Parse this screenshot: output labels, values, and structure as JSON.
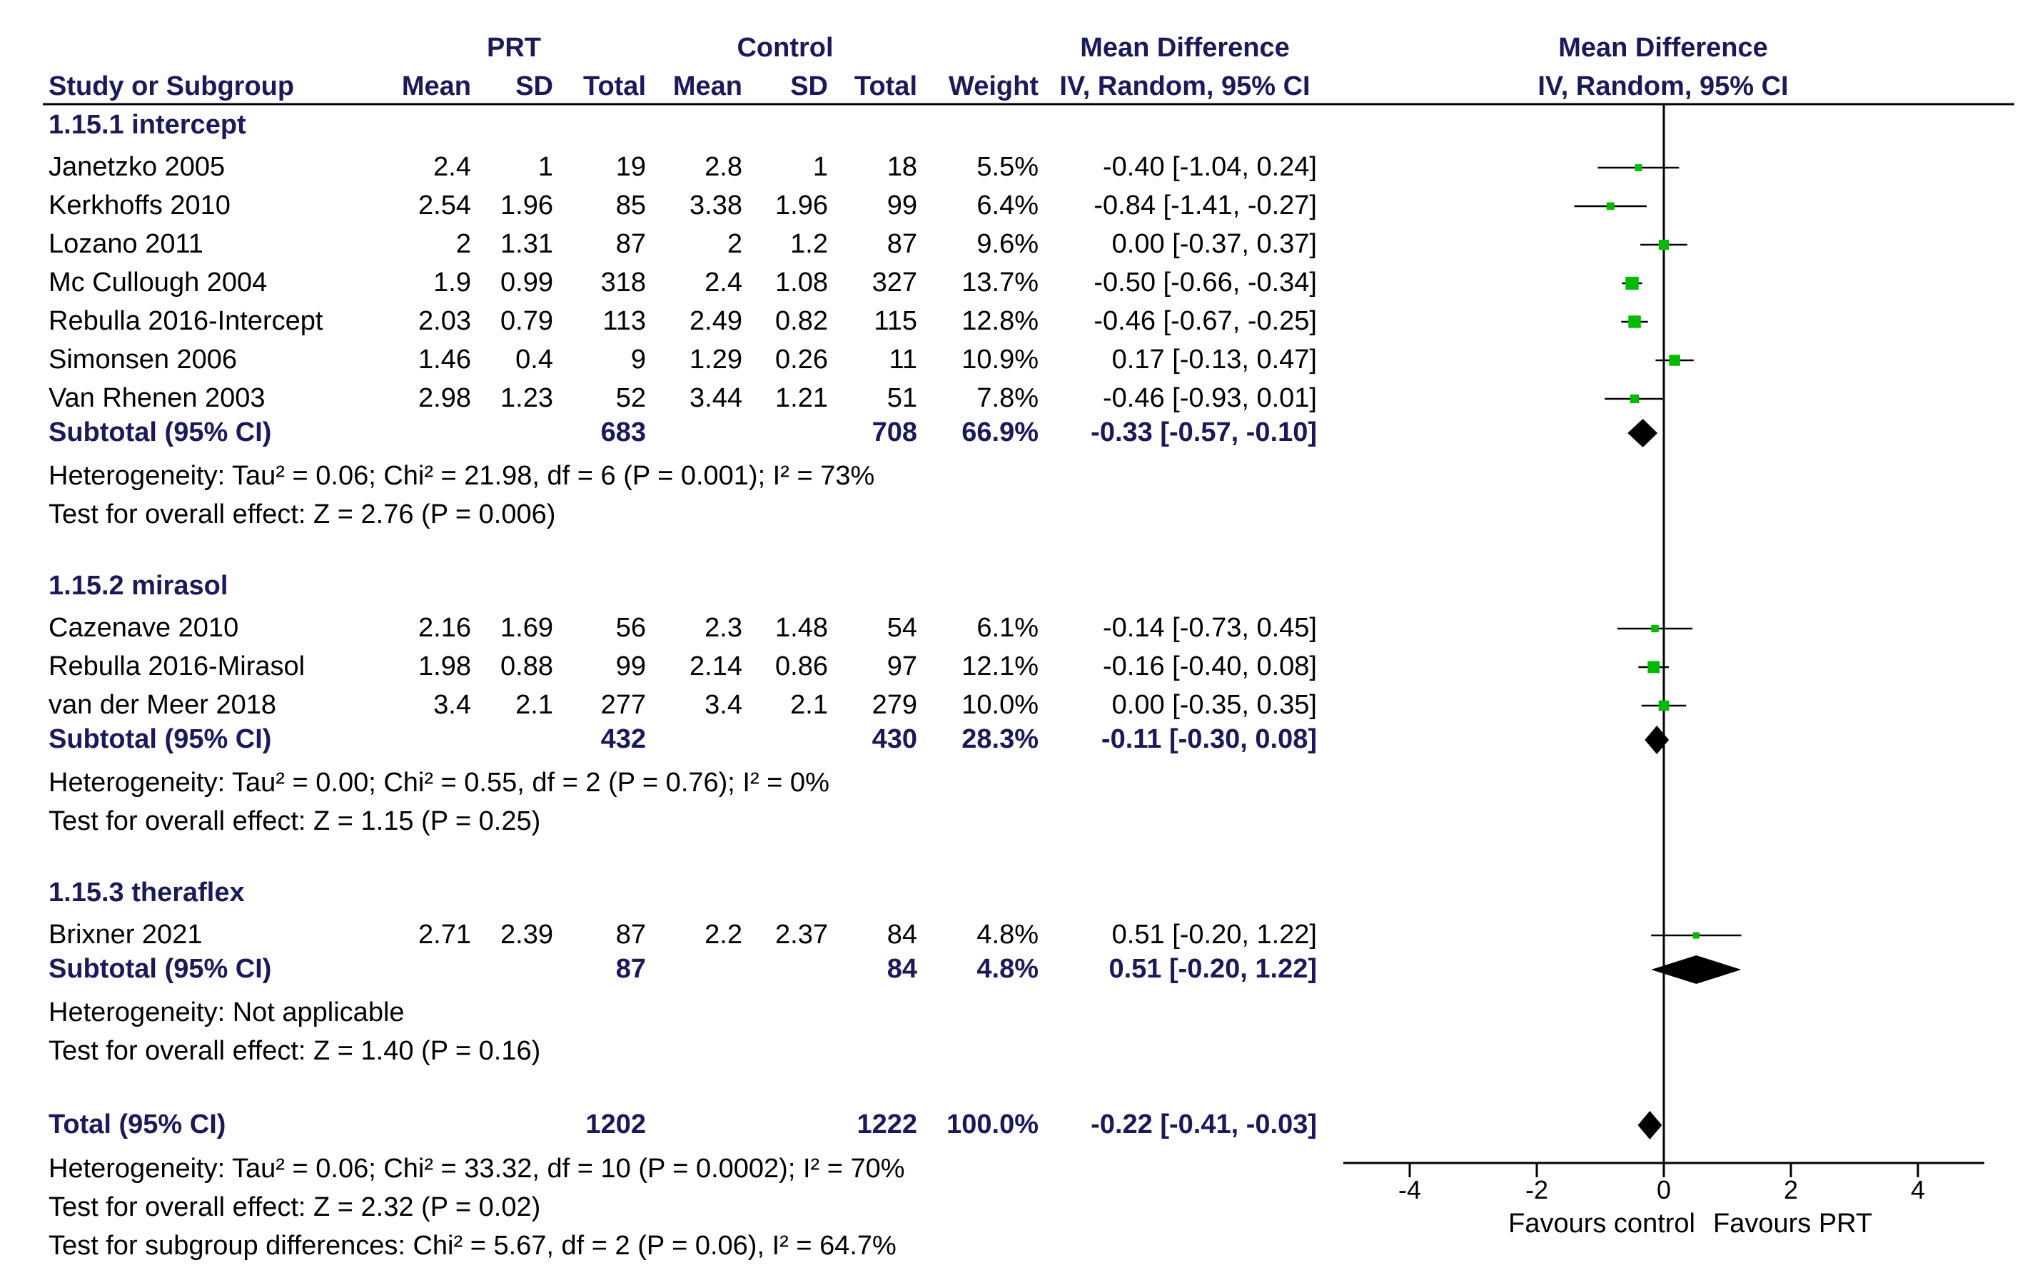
{
  "header": {
    "prt": "PRT",
    "control": "Control",
    "md_title": "Mean Difference",
    "md_sub": "IV, Random, 95% CI",
    "plot_title": "Mean Difference",
    "plot_sub": "IV, Random, 95% CI",
    "study": "Study or Subgroup",
    "mean1": "Mean",
    "sd1": "SD",
    "total1": "Total",
    "mean2": "Mean",
    "sd2": "SD",
    "total2": "Total",
    "weight": "Weight"
  },
  "groups": [
    {
      "title": "1.15.1 intercept",
      "studies": [
        {
          "name": "Janetzko 2005",
          "m1": "2.4",
          "sd1": "1",
          "n1": "19",
          "m2": "2.8",
          "sd2": "1",
          "n2": "18",
          "w": "5.5%",
          "ci": "-0.40 [-1.04, 0.24]"
        },
        {
          "name": "Kerkhoffs 2010",
          "m1": "2.54",
          "sd1": "1.96",
          "n1": "85",
          "m2": "3.38",
          "sd2": "1.96",
          "n2": "99",
          "w": "6.4%",
          "ci": "-0.84 [-1.41, -0.27]"
        },
        {
          "name": "Lozano 2011",
          "m1": "2",
          "sd1": "1.31",
          "n1": "87",
          "m2": "2",
          "sd2": "1.2",
          "n2": "87",
          "w": "9.6%",
          "ci": "0.00 [-0.37, 0.37]"
        },
        {
          "name": "Mc Cullough 2004",
          "m1": "1.9",
          "sd1": "0.99",
          "n1": "318",
          "m2": "2.4",
          "sd2": "1.08",
          "n2": "327",
          "w": "13.7%",
          "ci": "-0.50 [-0.66, -0.34]"
        },
        {
          "name": "Rebulla 2016-Intercept",
          "m1": "2.03",
          "sd1": "0.79",
          "n1": "113",
          "m2": "2.49",
          "sd2": "0.82",
          "n2": "115",
          "w": "12.8%",
          "ci": "-0.46 [-0.67, -0.25]"
        },
        {
          "name": "Simonsen 2006",
          "m1": "1.46",
          "sd1": "0.4",
          "n1": "9",
          "m2": "1.29",
          "sd2": "0.26",
          "n2": "11",
          "w": "10.9%",
          "ci": "0.17 [-0.13, 0.47]"
        },
        {
          "name": "Van Rhenen 2003",
          "m1": "2.98",
          "sd1": "1.23",
          "n1": "52",
          "m2": "3.44",
          "sd2": "1.21",
          "n2": "51",
          "w": "7.8%",
          "ci": "-0.46 [-0.93, 0.01]"
        }
      ],
      "subtotal": {
        "label": "Subtotal (95% CI)",
        "n1": "683",
        "n2": "708",
        "w": "66.9%",
        "ci": "-0.33 [-0.57, -0.10]"
      },
      "notes": [
        "Heterogeneity: Tau² = 0.06; Chi² = 21.98, df = 6 (P = 0.001); I² = 73%",
        "Test for overall effect: Z = 2.76 (P = 0.006)"
      ]
    },
    {
      "title": "1.15.2 mirasol",
      "studies": [
        {
          "name": "Cazenave 2010",
          "m1": "2.16",
          "sd1": "1.69",
          "n1": "56",
          "m2": "2.3",
          "sd2": "1.48",
          "n2": "54",
          "w": "6.1%",
          "ci": "-0.14 [-0.73, 0.45]"
        },
        {
          "name": "Rebulla 2016-Mirasol",
          "m1": "1.98",
          "sd1": "0.88",
          "n1": "99",
          "m2": "2.14",
          "sd2": "0.86",
          "n2": "97",
          "w": "12.1%",
          "ci": "-0.16 [-0.40, 0.08]"
        },
        {
          "name": "van der Meer 2018",
          "m1": "3.4",
          "sd1": "2.1",
          "n1": "277",
          "m2": "3.4",
          "sd2": "2.1",
          "n2": "279",
          "w": "10.0%",
          "ci": "0.00 [-0.35, 0.35]"
        }
      ],
      "subtotal": {
        "label": "Subtotal (95% CI)",
        "n1": "432",
        "n2": "430",
        "w": "28.3%",
        "ci": "-0.11 [-0.30, 0.08]"
      },
      "notes": [
        "Heterogeneity: Tau² = 0.00; Chi² = 0.55, df = 2 (P = 0.76); I² = 0%",
        "Test for overall effect: Z = 1.15 (P = 0.25)"
      ]
    },
    {
      "title": "1.15.3 theraflex",
      "studies": [
        {
          "name": "Brixner 2021",
          "m1": "2.71",
          "sd1": "2.39",
          "n1": "87",
          "m2": "2.2",
          "sd2": "2.37",
          "n2": "84",
          "w": "4.8%",
          "ci": "0.51 [-0.20, 1.22]"
        }
      ],
      "subtotal": {
        "label": "Subtotal (95% CI)",
        "n1": "87",
        "n2": "84",
        "w": "4.8%",
        "ci": "0.51 [-0.20, 1.22]"
      },
      "notes": [
        "Heterogeneity: Not applicable",
        "Test for overall effect: Z = 1.40 (P = 0.16)"
      ]
    }
  ],
  "total": {
    "label": "Total (95% CI)",
    "n1": "1202",
    "n2": "1222",
    "w": "100.0%",
    "ci": "-0.22 [-0.41, -0.03]",
    "notes": [
      "Heterogeneity: Tau² = 0.06; Chi² = 33.32, df = 10 (P = 0.0002); I² = 70%",
      "Test for overall effect: Z = 2.32 (P = 0.02)",
      "Test for subgroup differences: Chi² = 5.67, df = 2 (P = 0.06), I² = 64.7%"
    ]
  },
  "axis": {
    "ticks": [
      -4,
      -2,
      0,
      2,
      4
    ],
    "tick_labels": [
      "-4",
      "-2",
      "0",
      "2",
      "4"
    ],
    "left_label": "Favours control",
    "right_label": "Favours PRT"
  },
  "colors": {
    "point": "#00bb00",
    "diamond": "#000000",
    "line": "#000000",
    "bold_text": "#1a1a5a"
  },
  "chart_data": {
    "type": "forest",
    "title": "Mean Difference IV, Random, 95% CI",
    "xlim": [
      -5,
      5
    ],
    "xlabel_left": "Favours control",
    "xlabel_right": "Favours PRT",
    "studies": [
      {
        "name": "Janetzko 2005",
        "md": -0.4,
        "lo": -1.04,
        "hi": 0.24,
        "weight": 5.5
      },
      {
        "name": "Kerkhoffs 2010",
        "md": -0.84,
        "lo": -1.41,
        "hi": -0.27,
        "weight": 6.4
      },
      {
        "name": "Lozano 2011",
        "md": 0.0,
        "lo": -0.37,
        "hi": 0.37,
        "weight": 9.6
      },
      {
        "name": "Mc Cullough 2004",
        "md": -0.5,
        "lo": -0.66,
        "hi": -0.34,
        "weight": 13.7
      },
      {
        "name": "Rebulla 2016-Intercept",
        "md": -0.46,
        "lo": -0.67,
        "hi": -0.25,
        "weight": 12.8
      },
      {
        "name": "Simonsen 2006",
        "md": 0.17,
        "lo": -0.13,
        "hi": 0.47,
        "weight": 10.9
      },
      {
        "name": "Van Rhenen 2003",
        "md": -0.46,
        "lo": -0.93,
        "hi": 0.01,
        "weight": 7.8
      },
      {
        "name": "Cazenave 2010",
        "md": -0.14,
        "lo": -0.73,
        "hi": 0.45,
        "weight": 6.1
      },
      {
        "name": "Rebulla 2016-Mirasol",
        "md": -0.16,
        "lo": -0.4,
        "hi": 0.08,
        "weight": 12.1
      },
      {
        "name": "van der Meer 2018",
        "md": 0.0,
        "lo": -0.35,
        "hi": 0.35,
        "weight": 10.0
      },
      {
        "name": "Brixner 2021",
        "md": 0.51,
        "lo": -0.2,
        "hi": 1.22,
        "weight": 4.8
      }
    ],
    "summaries": [
      {
        "name": "Subtotal 1.15.1 intercept",
        "md": -0.33,
        "lo": -0.57,
        "hi": -0.1
      },
      {
        "name": "Subtotal 1.15.2 mirasol",
        "md": -0.11,
        "lo": -0.3,
        "hi": 0.08
      },
      {
        "name": "Subtotal 1.15.3 theraflex",
        "md": 0.51,
        "lo": -0.2,
        "hi": 1.22
      },
      {
        "name": "Total",
        "md": -0.22,
        "lo": -0.41,
        "hi": -0.03
      }
    ]
  }
}
